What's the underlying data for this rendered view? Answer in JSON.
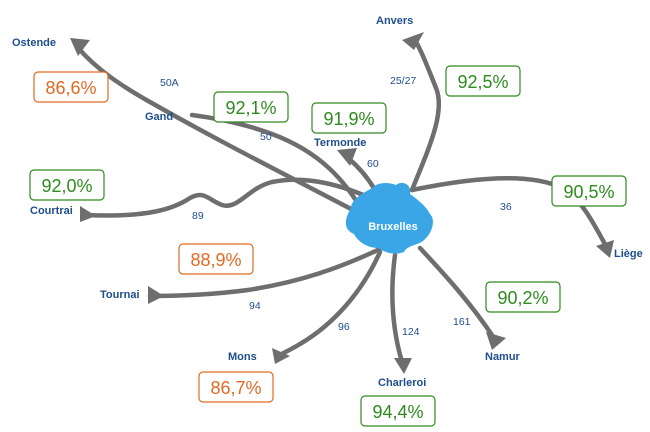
{
  "hub": {
    "label": "Bruxelles",
    "color": "#3aa6e6"
  },
  "colors": {
    "good": "#2e8b1e",
    "bad": "#e06a22",
    "road": "#6e6e6e",
    "label": "#1f4e8c"
  },
  "cities": [
    {
      "id": "anvers",
      "name": "Anvers"
    },
    {
      "id": "ostende",
      "name": "Ostende"
    },
    {
      "id": "gand",
      "name": "Gand"
    },
    {
      "id": "termonde",
      "name": "Termonde"
    },
    {
      "id": "courtrai",
      "name": "Courtrai"
    },
    {
      "id": "liege",
      "name": "Liège"
    },
    {
      "id": "tournai",
      "name": "Tournai"
    },
    {
      "id": "mons",
      "name": "Mons"
    },
    {
      "id": "charleroi",
      "name": "Charleroi"
    },
    {
      "id": "namur",
      "name": "Namur"
    }
  ],
  "routes": [
    {
      "id": "r25",
      "label": "25/27"
    },
    {
      "id": "r50a",
      "label": "50A"
    },
    {
      "id": "r50",
      "label": "50"
    },
    {
      "id": "r60",
      "label": "60"
    },
    {
      "id": "r89",
      "label": "89"
    },
    {
      "id": "r36",
      "label": "36"
    },
    {
      "id": "r94",
      "label": "94"
    },
    {
      "id": "r96",
      "label": "96"
    },
    {
      "id": "r124",
      "label": "124"
    },
    {
      "id": "r161",
      "label": "161"
    }
  ],
  "percentages": [
    {
      "id": "p-anvers",
      "value": "92,5%",
      "status": "good"
    },
    {
      "id": "p-ostende",
      "value": "86,6%",
      "status": "bad"
    },
    {
      "id": "p-gand",
      "value": "92,1%",
      "status": "good"
    },
    {
      "id": "p-termonde",
      "value": "91,9%",
      "status": "good"
    },
    {
      "id": "p-courtrai",
      "value": "92,0%",
      "status": "good"
    },
    {
      "id": "p-liege",
      "value": "90,5%",
      "status": "good"
    },
    {
      "id": "p-tournai",
      "value": "88,9%",
      "status": "bad"
    },
    {
      "id": "p-namur",
      "value": "90,2%",
      "status": "good"
    },
    {
      "id": "p-mons",
      "value": "86,7%",
      "status": "bad"
    },
    {
      "id": "p-charleroi",
      "value": "94,4%",
      "status": "good"
    }
  ]
}
